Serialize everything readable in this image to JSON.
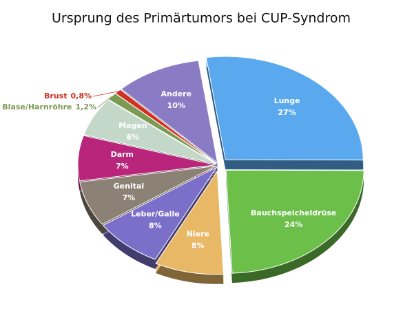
{
  "chart_data": {
    "type": "pie",
    "title": "Ursprung des Primärtumors bei CUP-Syndrom",
    "categories": [
      "Lunge",
      "Bauchspeicheldrüse",
      "Niere",
      "Leber/Galle",
      "Genital",
      "Darm",
      "Magen",
      "Blase/Harnröhre",
      "Brust",
      "Andere"
    ],
    "values": [
      27,
      24,
      8,
      8,
      7,
      7,
      6,
      1.2,
      0.8,
      10
    ],
    "value_labels": [
      "27%",
      "24%",
      "8%",
      "8%",
      "7%",
      "7%",
      "6%",
      "1,2%",
      "0,8%",
      "10%"
    ],
    "colors": [
      "#5aa9ef",
      "#6cc04a",
      "#e8b866",
      "#7b6fc9",
      "#8b8174",
      "#b8257a",
      "#c3d8c8",
      "#7c9a52",
      "#d03020",
      "#8a7cc4"
    ]
  }
}
